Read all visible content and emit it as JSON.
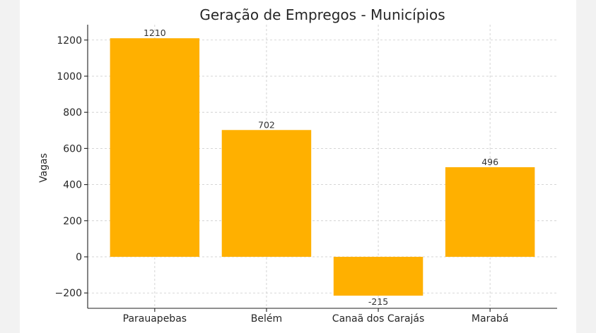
{
  "chart_data": {
    "type": "bar",
    "title": "Geração de Empregos - Municípios",
    "xlabel": "",
    "ylabel": "Vagas",
    "categories": [
      "Parauapebas",
      "Belém",
      "Canaã dos Carajás",
      "Marabá"
    ],
    "values": [
      1210,
      702,
      -215,
      496
    ],
    "data_labels": [
      "1210",
      "702",
      "-215",
      "496"
    ],
    "ylim": [
      -285,
      1285
    ],
    "yticks": [
      -200,
      0,
      200,
      400,
      600,
      800,
      1000,
      1200
    ],
    "ytick_labels": [
      "−200",
      "0",
      "200",
      "400",
      "600",
      "800",
      "1000",
      "1200"
    ],
    "grid": true,
    "legend": "none",
    "bar_color": "#ffb000"
  }
}
